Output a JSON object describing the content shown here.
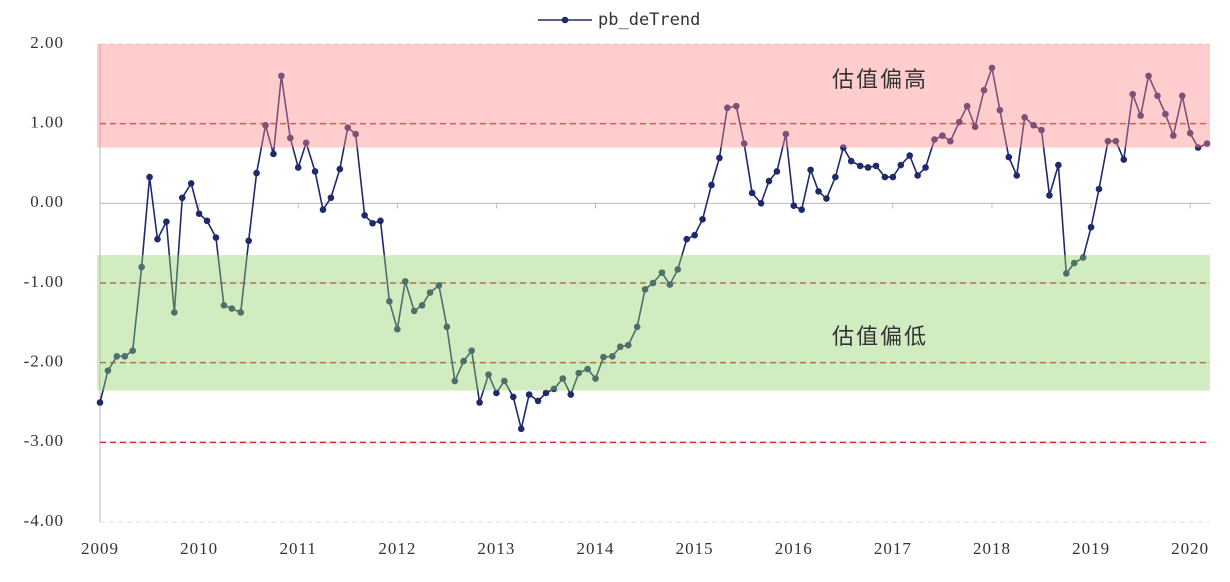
{
  "chart_data": {
    "type": "line",
    "x": [
      2009,
      2009.08,
      2009.17,
      2009.25,
      2009.33,
      2009.42,
      2009.5,
      2009.58,
      2009.67,
      2009.75,
      2009.83,
      2009.92,
      2010,
      2010.08,
      2010.17,
      2010.25,
      2010.33,
      2010.42,
      2010.5,
      2010.58,
      2010.67,
      2010.75,
      2010.83,
      2010.92,
      2011,
      2011.08,
      2011.17,
      2011.25,
      2011.33,
      2011.42,
      2011.5,
      2011.58,
      2011.67,
      2011.75,
      2011.83,
      2011.92,
      2012,
      2012.08,
      2012.17,
      2012.25,
      2012.33,
      2012.42,
      2012.5,
      2012.58,
      2012.67,
      2012.75,
      2012.83,
      2012.92,
      2013,
      2013.08,
      2013.17,
      2013.25,
      2013.33,
      2013.42,
      2013.5,
      2013.58,
      2013.67,
      2013.75,
      2013.83,
      2013.92,
      2014,
      2014.08,
      2014.17,
      2014.25,
      2014.33,
      2014.42,
      2014.5,
      2014.58,
      2014.67,
      2014.75,
      2014.83,
      2014.92,
      2015,
      2015.08,
      2015.17,
      2015.25,
      2015.33,
      2015.42,
      2015.5,
      2015.58,
      2015.67,
      2015.75,
      2015.83,
      2015.92,
      2016,
      2016.08,
      2016.17,
      2016.25,
      2016.33,
      2016.42,
      2016.5,
      2016.58,
      2016.67,
      2016.75,
      2016.83,
      2016.92,
      2017,
      2017.08,
      2017.17,
      2017.25,
      2017.33,
      2017.42,
      2017.5,
      2017.58,
      2017.67,
      2017.75,
      2017.83,
      2017.92,
      2018,
      2018.08,
      2018.17,
      2018.25,
      2018.33,
      2018.42,
      2018.5,
      2018.58,
      2018.67,
      2018.75,
      2018.83,
      2018.92,
      2019,
      2019.08,
      2019.17,
      2019.25,
      2019.33,
      2019.42,
      2019.5,
      2019.58,
      2019.67,
      2019.75,
      2019.83,
      2019.92,
      2020,
      2020.08,
      2020.17
    ],
    "series": [
      {
        "name": "pb_deTrend",
        "color": "#1f2a6b",
        "values": [
          -2.5,
          -2.1,
          -1.92,
          -1.92,
          -1.85,
          -0.8,
          0.33,
          -0.45,
          -0.23,
          -1.37,
          0.07,
          0.25,
          -0.13,
          -0.22,
          -0.43,
          -1.28,
          -1.32,
          -1.37,
          -0.47,
          0.38,
          0.98,
          0.62,
          1.6,
          0.82,
          0.45,
          0.76,
          0.4,
          -0.08,
          0.07,
          0.43,
          0.95,
          0.87,
          -0.15,
          -0.25,
          -0.22,
          -1.23,
          -1.58,
          -0.98,
          -1.35,
          -1.28,
          -1.12,
          -1.03,
          -1.55,
          -2.23,
          -1.98,
          -1.85,
          -2.5,
          -2.15,
          -2.38,
          -2.23,
          -2.43,
          -2.83,
          -2.4,
          -2.48,
          -2.38,
          -2.33,
          -2.2,
          -2.4,
          -2.13,
          -2.08,
          -2.2,
          -1.93,
          -1.92,
          -1.8,
          -1.78,
          -1.55,
          -1.08,
          -1.0,
          -0.87,
          -1.02,
          -0.83,
          -0.45,
          -0.4,
          -0.2,
          0.23,
          0.57,
          1.2,
          1.22,
          0.75,
          0.13,
          0.0,
          0.28,
          0.4,
          0.87,
          -0.03,
          -0.08,
          0.42,
          0.15,
          0.06,
          0.33,
          0.7,
          0.53,
          0.47,
          0.45,
          0.47,
          0.33,
          0.33,
          0.48,
          0.6,
          0.35,
          0.45,
          0.8,
          0.85,
          0.78,
          1.02,
          1.22,
          0.96,
          1.42,
          1.7,
          1.17,
          0.58,
          0.35,
          1.08,
          0.98,
          0.92,
          0.1,
          0.48,
          -0.88,
          -0.75,
          -0.68,
          -0.3,
          0.18,
          0.78,
          0.78,
          0.55,
          1.37,
          1.1,
          1.6,
          1.35,
          1.12,
          0.85,
          1.35,
          0.88,
          0.7,
          0.75
        ]
      }
    ],
    "xlim": [
      2009,
      2020.2
    ],
    "xticks": [
      2009,
      2010,
      2011,
      2012,
      2013,
      2014,
      2015,
      2016,
      2017,
      2018,
      2019,
      2020
    ],
    "ylim": [
      -4,
      2
    ],
    "yticks": [
      {
        "value": 2,
        "label": "2.00"
      },
      {
        "value": 1,
        "label": "1.00"
      },
      {
        "value": 0,
        "label": "0.00"
      },
      {
        "value": -1,
        "label": "-1.00"
      },
      {
        "value": -2,
        "label": "-2.00"
      },
      {
        "value": -3,
        "label": "-3.00"
      },
      {
        "value": -4,
        "label": "-4.00"
      }
    ],
    "grid": true,
    "x_axis_at": 0,
    "reference_lines": [
      1,
      -1,
      -2,
      -3
    ],
    "reference_color": "#d0302a",
    "bands": [
      {
        "from": 0.7,
        "to": 2,
        "color": "#ff8888",
        "label": "估值偏高",
        "label_color": "#e0202a"
      },
      {
        "from": -2.35,
        "to": -0.65,
        "color": "#8fd16a",
        "label": "估值偏低",
        "label_color": "#2aaa3a"
      }
    ],
    "legend": "top"
  }
}
